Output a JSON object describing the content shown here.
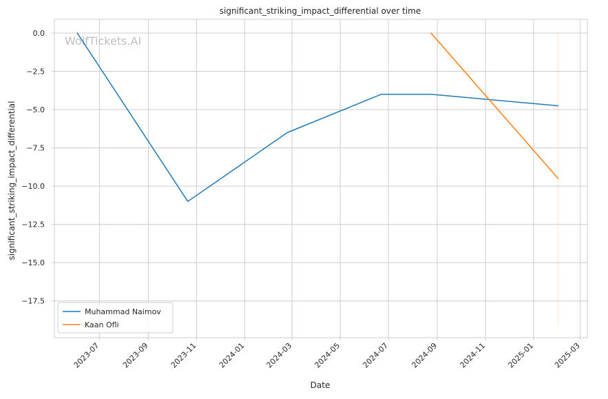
{
  "chart_data": {
    "type": "line",
    "title": "significant_striking_impact_differential over time",
    "xlabel": "Date",
    "ylabel": "significant_striking_impact_differential",
    "watermark": "WolfTickets.AI",
    "x_axis": {
      "kind": "date",
      "range": [
        "2023-05-05",
        "2025-03-10"
      ],
      "ticks": [
        "2023-07-01",
        "2023-09-01",
        "2023-11-01",
        "2024-01-01",
        "2024-03-01",
        "2024-05-01",
        "2024-07-01",
        "2024-09-01",
        "2024-11-01",
        "2025-01-01",
        "2025-03-01"
      ],
      "tick_labels": [
        "2023-07",
        "2023-09",
        "2023-11",
        "2024-01",
        "2024-03",
        "2024-05",
        "2024-07",
        "2024-09",
        "2024-11",
        "2025-01",
        "2025-03"
      ]
    },
    "y_axis": {
      "range": [
        -19.9,
        0.9
      ],
      "ticks": [
        0.0,
        -2.5,
        -5.0,
        -7.5,
        -10.0,
        -12.5,
        -15.0,
        -17.5
      ],
      "tick_labels": [
        "0.0",
        "−2.5",
        "−5.0",
        "−7.5",
        "−10.0",
        "−12.5",
        "−15.0",
        "−17.5"
      ]
    },
    "grid": true,
    "legend_position": "lower-left",
    "series": [
      {
        "name": "Muhammad Naimov",
        "color": "#1f77b4",
        "points": [
          {
            "x": "2023-06-03",
            "y": 0.0
          },
          {
            "x": "2023-10-21",
            "y": -11.0
          },
          {
            "x": "2024-02-24",
            "y": -6.5
          },
          {
            "x": "2024-06-22",
            "y": -4.0
          },
          {
            "x": "2024-08-24",
            "y": -4.0
          },
          {
            "x": "2025-02-01",
            "y": -4.75
          }
        ]
      },
      {
        "name": "Kaan Ofli",
        "color": "#ff7f0e",
        "points": [
          {
            "x": "2024-08-24",
            "y": 0.0
          },
          {
            "x": "2025-02-01",
            "y": -9.5
          }
        ]
      }
    ],
    "annotations": [
      {
        "type": "vertical-line",
        "x": "2025-02-01",
        "y_range": [
          -19.0,
          0.0
        ],
        "color": "#ff7f0e"
      }
    ]
  }
}
